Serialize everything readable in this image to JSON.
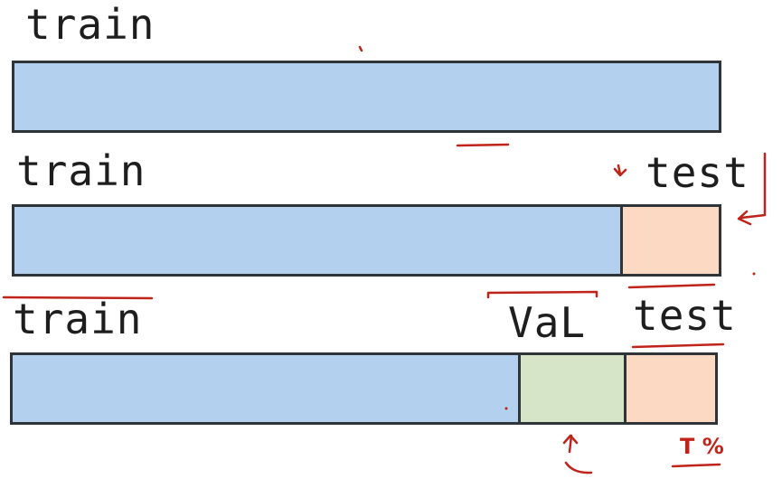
{
  "rows": [
    {
      "label": "train",
      "segments": [
        {
          "name": "train",
          "share": 1.0,
          "color": "#b3d1ee"
        }
      ]
    },
    {
      "label_left": "train",
      "label_right": "test",
      "segments": [
        {
          "name": "train",
          "share": 0.86,
          "color": "#b3d1ee"
        },
        {
          "name": "test",
          "share": 0.14,
          "color": "#fbd9c3"
        }
      ]
    },
    {
      "label_left": "train",
      "label_mid": "VaL",
      "label_right": "test",
      "segments": [
        {
          "name": "train",
          "share": 0.72,
          "color": "#b3d1ee"
        },
        {
          "name": "val",
          "share": 0.15,
          "color": "#d6e5c7"
        },
        {
          "name": "test",
          "share": 0.13,
          "color": "#fbd9c3"
        }
      ]
    }
  ],
  "annotation": {
    "text": "T %",
    "color": "#c0231a"
  },
  "colors": {
    "outline": "#2f3438",
    "ink": "#1e1e1e",
    "pen": "#c0231a"
  }
}
